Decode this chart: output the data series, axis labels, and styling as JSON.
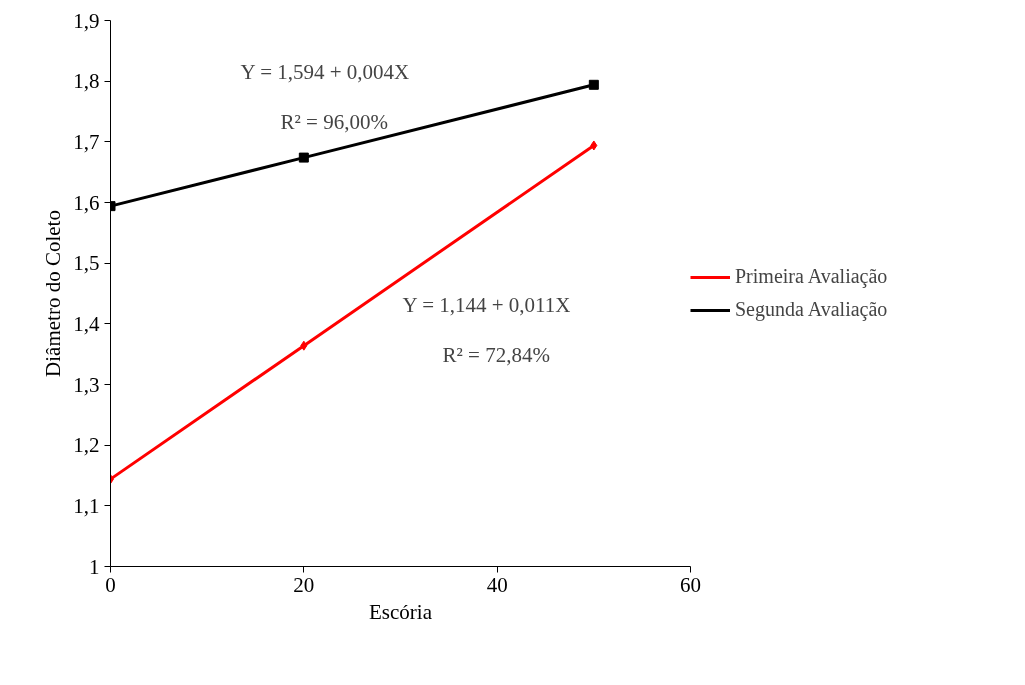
{
  "chart_data": {
    "type": "line",
    "xlabel": "Escória",
    "ylabel": "Diâmetro do Coleto",
    "x": [
      0,
      20,
      50
    ],
    "series": [
      {
        "name": "Primeira Avaliação",
        "color": "#ff0000",
        "marker": "diamond",
        "values": [
          1.144,
          1.364,
          1.694
        ]
      },
      {
        "name": "Segunda Avaliação",
        "color": "#000000",
        "marker": "square",
        "values": [
          1.594,
          1.674,
          1.794
        ]
      }
    ],
    "xlim": [
      0,
      60
    ],
    "xticks": [
      0,
      20,
      40,
      60
    ],
    "ylim": [
      1,
      1.9
    ],
    "yticks": [
      1,
      {
        "value": 1.1,
        "label": "1,1"
      },
      {
        "value": 1.2,
        "label": "1,2"
      },
      {
        "value": 1.3,
        "label": "1,3"
      },
      {
        "value": 1.4,
        "label": "1,4"
      },
      {
        "value": 1.5,
        "label": "1,5"
      },
      {
        "value": 1.6,
        "label": "1,6"
      },
      {
        "value": 1.7,
        "label": "1,7"
      },
      {
        "value": 1.8,
        "label": "1,8"
      },
      {
        "value": 1.9,
        "label": "1,9"
      }
    ],
    "annotations": [
      "Y = 1,594 + 0,004X",
      "R² = 96,00%",
      "Y = 1,144 + 0,011X",
      "R² = 72,84%"
    ],
    "grid": false,
    "legend": "right",
    "line_style": "solid"
  }
}
